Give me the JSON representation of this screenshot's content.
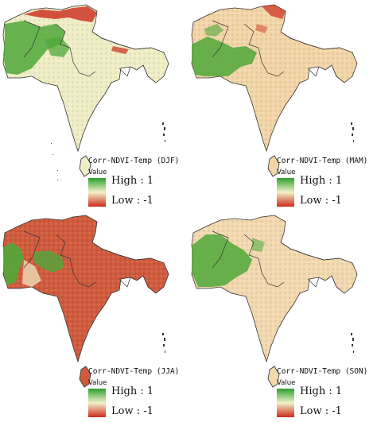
{
  "panels": [
    {
      "id": "djf",
      "title": "Corr-NDVI-Temp (DJF)"
    },
    {
      "id": "mam",
      "title": "Corr-NDVI-Temp (MAM)"
    },
    {
      "id": "jja",
      "title": "Corr-NDVI-Temp (JJA)"
    },
    {
      "id": "son",
      "title": "Corr-NDVI-Temp (SON)"
    }
  ],
  "legend": {
    "header": "Value",
    "high_label": "High : 1",
    "low_label": "Low : -1",
    "high_color": "#2e9e2e",
    "mid_color": "#f2f0c8",
    "low_color": "#cc2a1a"
  },
  "colors": {
    "djf_base": "#f0eec6",
    "mam_base": "#f3d6a8",
    "jja_base": "#d05a3c",
    "son_base": "#f3d9b0",
    "green": "#4fa83a",
    "red": "#cc2a1a",
    "border": "#333333"
  }
}
